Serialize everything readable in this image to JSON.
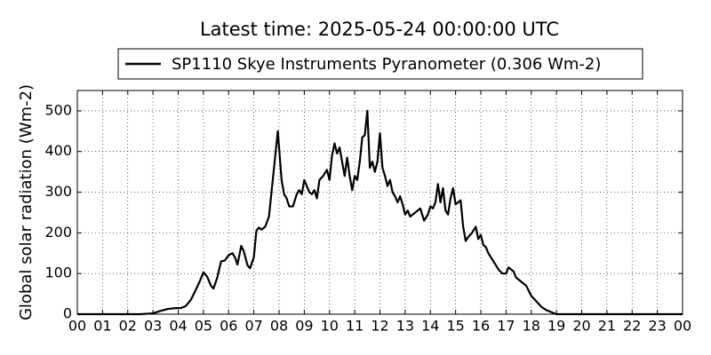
{
  "chart_data": {
    "type": "line",
    "title": "Latest time: 2025-05-24 00:00:00 UTC",
    "ylabel": "Global solar radiation (Wm-2)",
    "legend": "upper center",
    "grid": true,
    "series": [
      {
        "name": "SP1110 Skye Instruments Pyranometer (0.306 Wm-2)",
        "color": "#000000",
        "x": [
          0,
          1,
          2,
          2.5,
          3.0,
          3.3,
          3.6,
          3.9,
          4.1,
          4.3,
          4.5,
          4.7,
          4.85,
          5.0,
          5.15,
          5.3,
          5.4,
          5.55,
          5.7,
          5.85,
          6.0,
          6.15,
          6.25,
          6.35,
          6.5,
          6.6,
          6.75,
          6.85,
          7.0,
          7.1,
          7.2,
          7.3,
          7.45,
          7.6,
          7.75,
          7.85,
          7.95,
          8.0,
          8.1,
          8.2,
          8.3,
          8.4,
          8.55,
          8.7,
          8.8,
          8.9,
          9.0,
          9.1,
          9.2,
          9.3,
          9.4,
          9.5,
          9.6,
          9.75,
          9.9,
          10.0,
          10.1,
          10.2,
          10.3,
          10.4,
          10.5,
          10.6,
          10.7,
          10.8,
          10.9,
          11.0,
          11.1,
          11.2,
          11.3,
          11.4,
          11.5,
          11.6,
          11.7,
          11.8,
          11.9,
          12.0,
          12.1,
          12.2,
          12.3,
          12.4,
          12.5,
          12.6,
          12.7,
          12.8,
          12.9,
          13.0,
          13.1,
          13.2,
          13.4,
          13.6,
          13.75,
          13.9,
          14.0,
          14.1,
          14.2,
          14.3,
          14.4,
          14.5,
          14.6,
          14.7,
          14.8,
          14.9,
          15.0,
          15.1,
          15.2,
          15.3,
          15.4,
          15.5,
          15.65,
          15.8,
          15.9,
          16.0,
          16.1,
          16.2,
          16.3,
          16.5,
          16.7,
          16.85,
          17.0,
          17.1,
          17.3,
          17.4,
          17.6,
          17.8,
          18.0,
          18.2,
          18.4,
          18.6,
          18.8,
          19.0,
          20,
          21,
          22,
          23,
          24
        ],
        "values": [
          0,
          0,
          0,
          0,
          2,
          8,
          13,
          15,
          15,
          20,
          35,
          60,
          80,
          103,
          92,
          70,
          63,
          90,
          130,
          132,
          145,
          150,
          140,
          122,
          168,
          155,
          120,
          113,
          140,
          205,
          213,
          208,
          215,
          240,
          330,
          390,
          450,
          410,
          330,
          295,
          285,
          265,
          265,
          295,
          305,
          295,
          330,
          315,
          300,
          295,
          305,
          285,
          330,
          340,
          355,
          330,
          390,
          420,
          395,
          410,
          375,
          340,
          385,
          340,
          305,
          340,
          330,
          375,
          435,
          440,
          500,
          360,
          375,
          350,
          375,
          445,
          360,
          340,
          315,
          330,
          300,
          290,
          275,
          290,
          270,
          245,
          255,
          240,
          250,
          260,
          230,
          245,
          265,
          260,
          275,
          320,
          275,
          310,
          255,
          245,
          285,
          310,
          270,
          275,
          280,
          215,
          180,
          190,
          200,
          215,
          185,
          195,
          170,
          165,
          150,
          130,
          110,
          100,
          100,
          115,
          105,
          90,
          80,
          70,
          45,
          32,
          18,
          10,
          5,
          0,
          0,
          0,
          0,
          0,
          0
        ]
      }
    ],
    "xlim": [
      0,
      24
    ],
    "xticks": [
      {
        "value": 0,
        "label": "00"
      },
      {
        "value": 1,
        "label": "01"
      },
      {
        "value": 2,
        "label": "02"
      },
      {
        "value": 3,
        "label": "03"
      },
      {
        "value": 4,
        "label": "04"
      },
      {
        "value": 5,
        "label": "05"
      },
      {
        "value": 6,
        "label": "06"
      },
      {
        "value": 7,
        "label": "07"
      },
      {
        "value": 8,
        "label": "08"
      },
      {
        "value": 9,
        "label": "09"
      },
      {
        "value": 10,
        "label": "10"
      },
      {
        "value": 11,
        "label": "11"
      },
      {
        "value": 12,
        "label": "12"
      },
      {
        "value": 13,
        "label": "13"
      },
      {
        "value": 14,
        "label": "14"
      },
      {
        "value": 15,
        "label": "15"
      },
      {
        "value": 16,
        "label": "16"
      },
      {
        "value": 17,
        "label": "17"
      },
      {
        "value": 18,
        "label": "18"
      },
      {
        "value": 19,
        "label": "19"
      },
      {
        "value": 20,
        "label": "20"
      },
      {
        "value": 21,
        "label": "21"
      },
      {
        "value": 22,
        "label": "22"
      },
      {
        "value": 23,
        "label": "23"
      },
      {
        "value": 24,
        "label": "00"
      }
    ],
    "ylim": [
      0,
      550
    ],
    "yticks": [
      0,
      100,
      200,
      300,
      400,
      500
    ]
  }
}
